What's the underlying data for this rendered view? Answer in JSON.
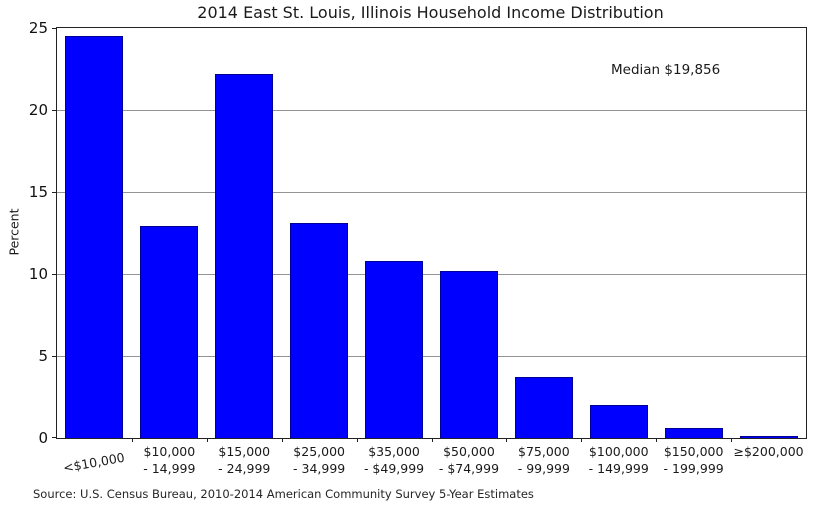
{
  "chart_data": {
    "type": "bar",
    "title": "2014 East St. Louis, Illinois Household Income Distribution",
    "ylabel": "Percent",
    "xlabel": "",
    "ylim": [
      0,
      25
    ],
    "yticks": [
      0,
      5,
      10,
      15,
      20,
      25
    ],
    "grid": "horizontal",
    "legend": "none",
    "categories": [
      [
        "<$10,000"
      ],
      [
        "$10,000",
        "- 14,999"
      ],
      [
        "$15,000",
        "- 24,999"
      ],
      [
        "$25,000",
        "- 34,999"
      ],
      [
        "$35,000",
        "- $49,999"
      ],
      [
        "$50,000",
        "- $74,999"
      ],
      [
        "$75,000",
        "- 99,999"
      ],
      [
        "$100,000",
        "- 149,999"
      ],
      [
        "$150,000",
        "- 199,999"
      ],
      [
        "≥$200,000"
      ]
    ],
    "values": [
      24.5,
      12.9,
      22.2,
      13.1,
      10.8,
      10.2,
      3.7,
      2.0,
      0.6,
      0.1
    ],
    "annotation": "Median $19,856",
    "source": "Source: U.S. Census Bureau, 2010-2014 American Community Survey 5-Year Estimates",
    "bar_color": "#0000ff",
    "bar_edge_color": "#000099",
    "grid_color": "#949494"
  }
}
